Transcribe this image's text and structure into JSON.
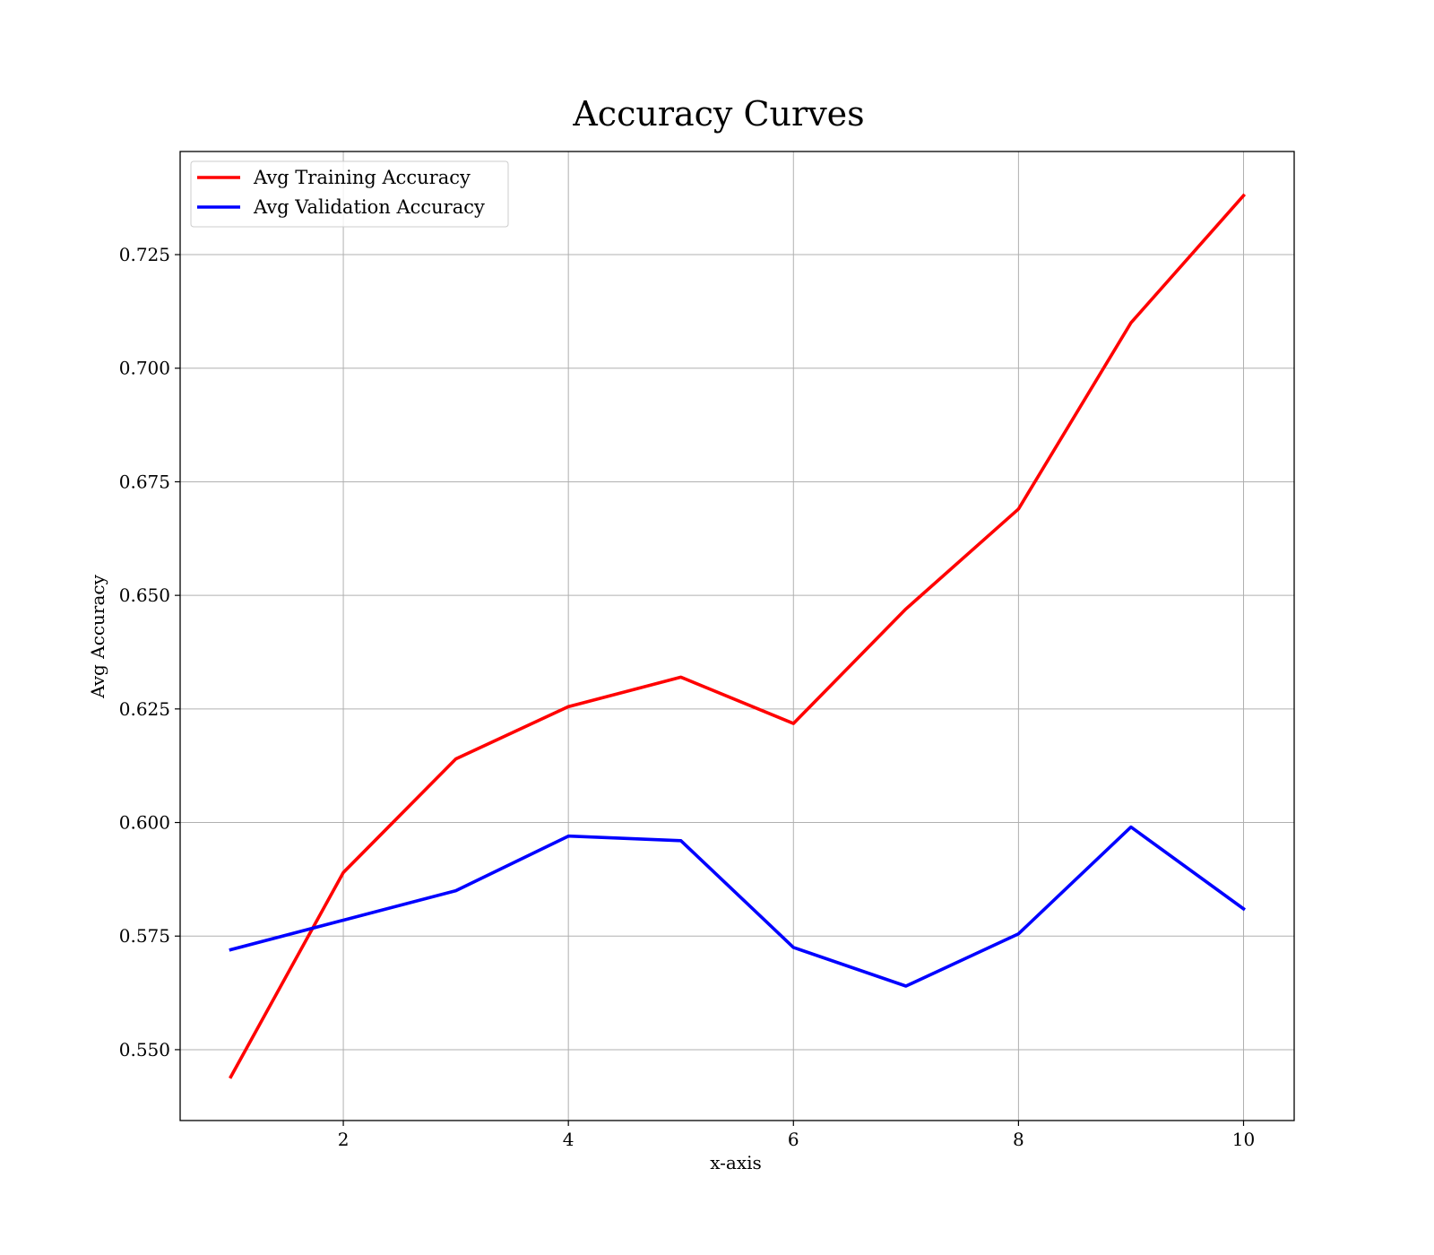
{
  "chart_data": {
    "type": "line",
    "title": "Accuracy Curves",
    "xlabel": "x-axis",
    "ylabel": "Avg Accuracy",
    "x": [
      1,
      2,
      3,
      4,
      5,
      6,
      7,
      8,
      9,
      10
    ],
    "series": [
      {
        "name": "Avg Training Accuracy",
        "color": "#ff0000",
        "values": [
          0.544,
          0.589,
          0.614,
          0.6255,
          0.632,
          0.6218,
          0.647,
          0.669,
          0.71,
          0.738
        ]
      },
      {
        "name": "Avg Validation Accuracy",
        "color": "#0000ff",
        "values": [
          0.572,
          0.5785,
          0.585,
          0.597,
          0.596,
          0.5725,
          0.564,
          0.5755,
          0.599,
          0.581
        ]
      }
    ],
    "xlim": [
      0.55,
      10.45
    ],
    "ylim": [
      0.5344,
      0.7477
    ],
    "xticks": [
      2,
      4,
      6,
      8,
      10
    ],
    "xtick_labels": [
      "2",
      "4",
      "6",
      "8",
      "10"
    ],
    "yticks": [
      0.55,
      0.575,
      0.6,
      0.625,
      0.65,
      0.675,
      0.7,
      0.725
    ],
    "ytick_labels": [
      "0.550",
      "0.575",
      "0.600",
      "0.625",
      "0.650",
      "0.675",
      "0.700",
      "0.725"
    ],
    "grid": true,
    "legend_position": "upper left"
  }
}
